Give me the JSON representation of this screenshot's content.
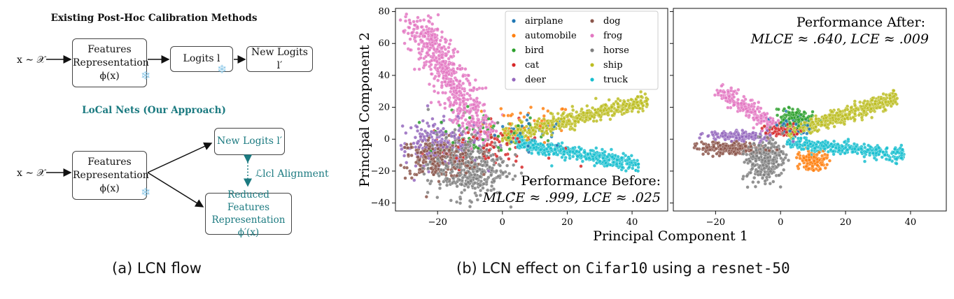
{
  "left": {
    "header_existing": "Existing Post-Hoc Calibration Methods",
    "header_local": "LoCal Nets (Our Approach)",
    "input_label": "x ∼ 𝒳",
    "features_box": [
      "Features",
      "Representation",
      "ϕ(x)"
    ],
    "logits_box": "Logits l",
    "new_logits_box": "New Logits l′",
    "reduced_box": [
      "Reduced Features",
      "Representation",
      "ϕ′(x)"
    ],
    "alignment_label": "ℒlcl Alignment",
    "snowflake": "❄",
    "caption": "(a) LCN flow"
  },
  "chart_data": [
    {
      "type": "scatter",
      "panel": "before",
      "xlabel": "Principal Component 1",
      "ylabel": "Principal Component 2",
      "xlim": [
        -33,
        51
      ],
      "ylim": [
        -45,
        82
      ],
      "xticks": [
        -20,
        0,
        20,
        40
      ],
      "yticks": [
        -40,
        -20,
        0,
        20,
        40,
        60,
        80
      ],
      "annotation": [
        "Performance Before:",
        "MLCE ≈ .999, LCE ≈ .025"
      ],
      "legend_position": "top-right",
      "series": [
        {
          "name": "airplane",
          "color": "#1f77b4",
          "center": [
            10,
            5
          ],
          "spread": [
            6,
            5
          ],
          "count": 30
        },
        {
          "name": "automobile",
          "color": "#ff7f0e",
          "center": [
            8,
            10
          ],
          "spread": [
            7,
            6
          ],
          "count": 40
        },
        {
          "name": "bird",
          "color": "#2ca02c",
          "center": [
            -5,
            3
          ],
          "spread": [
            9,
            7
          ],
          "count": 60
        },
        {
          "name": "cat",
          "color": "#d62728",
          "center": [
            -3,
            -3
          ],
          "spread": [
            10,
            7
          ],
          "count": 80
        },
        {
          "name": "deer",
          "color": "#9467bd",
          "center": [
            -20,
            -2
          ],
          "spread": [
            7,
            7
          ],
          "count": 180
        },
        {
          "name": "dog",
          "color": "#8c564b",
          "center": [
            -20,
            -12
          ],
          "spread": [
            6,
            6
          ],
          "count": 260
        },
        {
          "name": "frog",
          "color": "#e377c2",
          "center": [
            -14,
            28
          ],
          "spread": [
            6,
            17
          ],
          "count": 600
        },
        {
          "name": "horse",
          "color": "#7f7f7f",
          "center": [
            -11,
            -17
          ],
          "spread": [
            6,
            10
          ],
          "count": 450
        },
        {
          "name": "ship",
          "color": "#bcbd22",
          "center": [
            22,
            10
          ],
          "spread": [
            14,
            7
          ],
          "count": 520
        },
        {
          "name": "truck",
          "color": "#17becf",
          "center": [
            18,
            -6
          ],
          "spread": [
            13,
            4
          ],
          "count": 420
        }
      ]
    },
    {
      "type": "scatter",
      "panel": "after",
      "xlabel": "",
      "ylabel": "",
      "xlim": [
        -33,
        51
      ],
      "ylim": [
        -45,
        82
      ],
      "xticks": [
        -20,
        0,
        20,
        40
      ],
      "annotation": [
        "Performance After:",
        "MLCE ≈ .640, LCE ≈ .009"
      ],
      "series": [
        {
          "name": "airplane",
          "color": "#1f77b4",
          "center": [
            4,
            10
          ],
          "spread": [
            3,
            3
          ],
          "count": 40
        },
        {
          "name": "automobile",
          "color": "#ff7f0e",
          "center": [
            10,
            -13
          ],
          "spread": [
            2.5,
            3
          ],
          "count": 120
        },
        {
          "name": "bird",
          "color": "#2ca02c",
          "center": [
            4,
            13
          ],
          "spread": [
            2.5,
            3
          ],
          "count": 120
        },
        {
          "name": "cat",
          "color": "#d62728",
          "center": [
            1,
            5
          ],
          "spread": [
            3,
            2.5
          ],
          "count": 80
        },
        {
          "name": "deer",
          "color": "#9467bd",
          "center": [
            -12,
            2
          ],
          "spread": [
            5,
            1.5
          ],
          "count": 150
        },
        {
          "name": "dog",
          "color": "#8c564b",
          "center": [
            -15,
            -6
          ],
          "spread": [
            5,
            2
          ],
          "count": 200
        },
        {
          "name": "frog",
          "color": "#e377c2",
          "center": [
            -9,
            17
          ],
          "spread": [
            4,
            4
          ],
          "count": 200
        },
        {
          "name": "horse",
          "color": "#7f7f7f",
          "center": [
            -5,
            -12
          ],
          "spread": [
            3,
            7
          ],
          "count": 300
        },
        {
          "name": "ship",
          "color": "#bcbd22",
          "center": [
            18,
            12
          ],
          "spread": [
            9,
            5
          ],
          "count": 420
        },
        {
          "name": "truck",
          "color": "#17becf",
          "center": [
            15,
            -4
          ],
          "spread": [
            10,
            3
          ],
          "count": 350
        }
      ]
    }
  ],
  "right": {
    "caption_prefix": "(b) LCN effect on ",
    "caption_dataset": "Cifar10",
    "caption_mid": " using a ",
    "caption_model": "resnet-50"
  }
}
